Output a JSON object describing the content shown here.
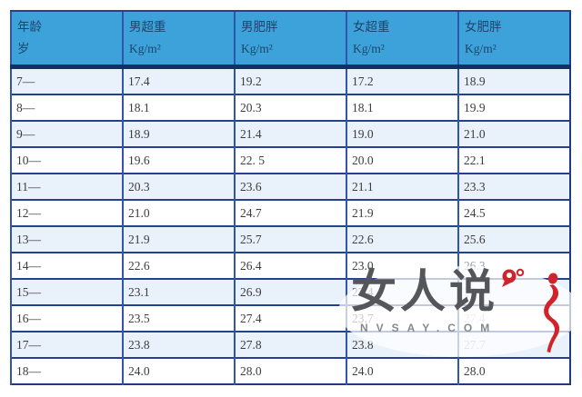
{
  "colors": {
    "header_bg": "#3da2d9",
    "header_text": "#1d466e",
    "header_band": "#132f6a",
    "horizontal_line": "#23418c",
    "vertical_line": "#2f57a9",
    "alt_row_bg": "#e9f1fa",
    "cell_text": "#3d3d3f",
    "faded_text": "#9aa0a6",
    "watermark_red": "#d2232a",
    "watermark_grey": "#54565a",
    "watermark_sub_grey": "#85888c"
  },
  "table": {
    "headers": [
      {
        "line1": "年龄",
        "line2": "岁"
      },
      {
        "line1": "男超重",
        "line2": "Kg/m²"
      },
      {
        "line1": "男肥胖",
        "line2": "Kg/m²"
      },
      {
        "line1": "女超重",
        "line2": "Kg/m²"
      },
      {
        "line1": "女肥胖",
        "line2": "Kg/m²"
      }
    ],
    "muted_cells": [
      [
        7,
        4
      ],
      [
        10,
        4
      ]
    ],
    "ghost_cells": [
      [
        8,
        4
      ],
      [
        9,
        4
      ]
    ]
  },
  "watermark": {
    "logo": "女人说",
    "site": "NVSAY.COM"
  },
  "chart_data": {
    "type": "table",
    "title": "",
    "columns": [
      "年龄 岁",
      "男超重 Kg/m²",
      "男肥胖 Kg/m²",
      "女超重 Kg/m²",
      "女肥胖 Kg/m²"
    ],
    "rows": [
      [
        "7—",
        "17.4",
        "19.2",
        "17.2",
        "18.9"
      ],
      [
        "8—",
        "18.1",
        "20.3",
        "18.1",
        "19.9"
      ],
      [
        "9—",
        "18.9",
        "21.4",
        "19.0",
        "21.0"
      ],
      [
        "10—",
        "19.6",
        "22. 5",
        "20.0",
        "22.1"
      ],
      [
        "11—",
        "20.3",
        "23.6",
        "21.1",
        "23.3"
      ],
      [
        "12—",
        "21.0",
        "24.7",
        "21.9",
        "24.5"
      ],
      [
        "13—",
        "21.9",
        "25.7",
        "22.6",
        "25.6"
      ],
      [
        "14—",
        "22.6",
        "26.4",
        "23.0",
        "26.3"
      ],
      [
        "15—",
        "23.1",
        "26.9",
        "23.4",
        "26.9"
      ],
      [
        "16—",
        "23.5",
        "27.4",
        "23.7",
        "27.4"
      ],
      [
        "17—",
        "23.8",
        "27.8",
        "23.8",
        "27.7"
      ],
      [
        "18—",
        "24.0",
        "28.0",
        "24.0",
        "28.0"
      ]
    ]
  }
}
